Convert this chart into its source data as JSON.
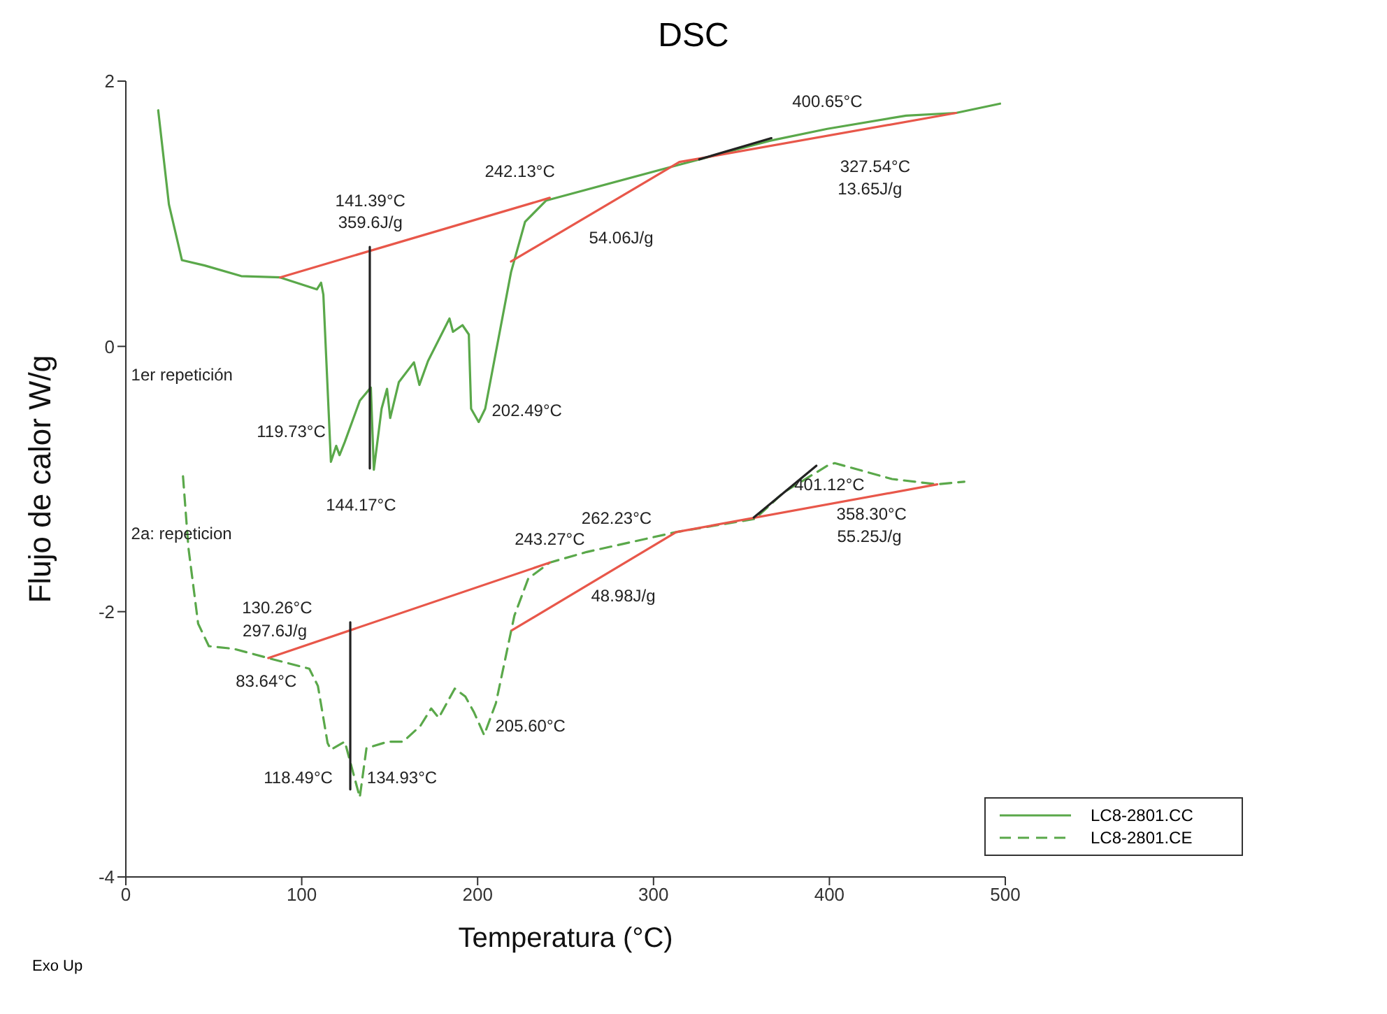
{
  "chart_data": {
    "type": "line",
    "title": "DSC",
    "xlabel": "Temperatura (°C)",
    "ylabel": "Flujo de calor W/g",
    "xlim": [
      0,
      500
    ],
    "xticks": [
      0,
      100,
      200,
      300,
      400,
      500
    ],
    "ylim": [
      -4,
      2
    ],
    "yticks": [
      -4,
      -2,
      0,
      2
    ],
    "grid": false,
    "legend": "bottom right",
    "marker": "none",
    "series": [
      {
        "name": "LC8-2801.CC",
        "color": "#5aa84a",
        "line_style": "solid",
        "x": [
          18.4,
          24.5,
          31.9,
          44.8,
          65.6,
          87.7,
          108.6,
          111,
          112.3,
          116.6,
          119.6,
          121.5,
          124.5,
          133,
          139.3,
          141,
          145.4,
          148.5,
          150.3,
          155.2,
          163.8,
          166.9,
          171.8,
          184,
          186,
          191.4,
          195,
          196.3,
          200.6,
          204.3,
          219,
          227,
          239,
          314.7,
          366,
          398.8,
          443.6,
          472,
          497
        ],
        "values": [
          1.78,
          1.07,
          0.65,
          0.61,
          0.53,
          0.52,
          0.43,
          0.48,
          0.39,
          -0.87,
          -0.75,
          -0.82,
          -0.72,
          -0.41,
          -0.31,
          -0.93,
          -0.47,
          -0.32,
          -0.54,
          -0.27,
          -0.12,
          -0.29,
          -0.11,
          0.21,
          0.11,
          0.16,
          0.09,
          -0.47,
          -0.57,
          -0.47,
          0.56,
          0.94,
          1.1,
          1.37,
          1.55,
          1.64,
          1.74,
          1.76,
          1.83
        ]
      },
      {
        "name": "LC8-2801.CE",
        "color": "#5aa84a",
        "line_style": "dashed",
        "x": [
          32.5,
          35.6,
          41.1,
          47.2,
          61.3,
          81,
          104.3,
          109.2,
          114.7,
          116.6,
          124.5,
          133,
          136.8,
          149,
          157.7,
          167.5,
          173.6,
          177.9,
          187,
          193,
          198,
          203.7,
          210.4,
          220.9,
          228.8,
          241,
          262,
          312.9,
          357.7,
          374,
          398.8,
          403,
          435.6,
          461.3,
          476.7
        ],
        "values": [
          -0.98,
          -1.52,
          -2.09,
          -2.26,
          -2.28,
          -2.35,
          -2.43,
          -2.56,
          -2.99,
          -3.04,
          -2.98,
          -3.4,
          -3.03,
          -2.98,
          -2.98,
          -2.86,
          -2.73,
          -2.8,
          -2.58,
          -2.64,
          -2.76,
          -2.93,
          -2.69,
          -2.03,
          -1.75,
          -1.63,
          -1.55,
          -1.4,
          -1.3,
          -1.1,
          -0.9,
          -0.88,
          -1.0,
          -1.04,
          -1.02
        ]
      },
      {
        "color": "#e8574a",
        "line_style": "solid",
        "x": [
          87.7,
          241
        ],
        "values": [
          0.52,
          1.12
        ]
      },
      {
        "color": "#e8574a",
        "line_style": "solid",
        "x": [
          219,
          314.7,
          472
        ],
        "values": [
          0.64,
          1.39,
          1.76
        ]
      },
      {
        "color": "#e8574a",
        "line_style": "solid",
        "x": [
          81,
          241
        ],
        "values": [
          -2.35,
          -1.63
        ]
      },
      {
        "color": "#e8574a",
        "line_style": "solid",
        "x": [
          219.6,
          312.9,
          461.3
        ],
        "values": [
          -2.14,
          -1.4,
          -1.04
        ]
      },
      {
        "color": "#222222",
        "line_style": "solid",
        "x": [
          138.7,
          138.7
        ],
        "values": [
          0.75,
          -0.92
        ]
      },
      {
        "color": "#222222",
        "line_style": "solid",
        "x": [
          127.6,
          127.6
        ],
        "values": [
          -2.08,
          -3.34
        ]
      },
      {
        "color": "#222222",
        "line_style": "solid",
        "x": [
          326,
          367
        ],
        "values": [
          1.41,
          1.57
        ]
      },
      {
        "color": "#222222",
        "line_style": "solid",
        "x": [
          357,
          392.6
        ],
        "values": [
          -1.29,
          -0.9
        ]
      }
    ],
    "annotations": [
      "141.39°C",
      "359.6J/g",
      "242.13°C",
      "400.65°C",
      "327.54°C",
      "13.65J/g",
      "54.06J/g",
      "1er repetición",
      "119.73°C",
      "202.49°C",
      "144.17°C",
      "401.12°C",
      "2a: repeticion",
      "243.27°C",
      "262.23°C",
      "358.30°C",
      "55.25J/g",
      "48.98J/g",
      "130.26°C",
      "297.6J/g",
      "83.64°C",
      "118.49°C",
      "134.93°C",
      "205.60°C",
      "Exo Up"
    ]
  }
}
